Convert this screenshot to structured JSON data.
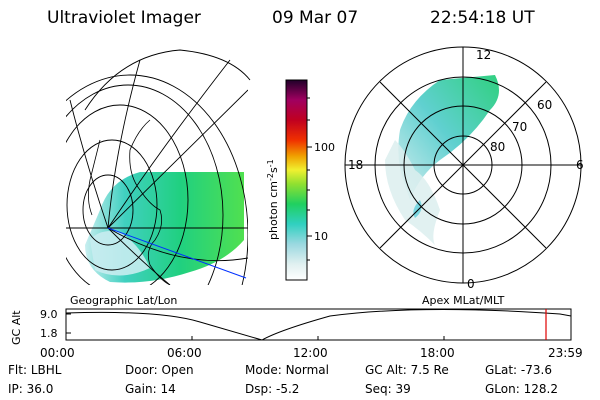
{
  "header": {
    "instrument": "Ultraviolet Imager",
    "date": "09 Mar 07",
    "time": "22:54:18 UT"
  },
  "left_panel": {
    "caption": "Geographic Lat/Lon"
  },
  "right_panel": {
    "caption": "Apex MLat/MLT",
    "mlt_labels": [
      "12",
      "18",
      "6",
      "0"
    ],
    "lat_labels": [
      "60",
      "70",
      "80"
    ]
  },
  "colorbar": {
    "unit_label": "photon cm",
    "unit_sup1": "-2",
    "unit_mid": "s",
    "unit_sup2": "-1",
    "tick_labels": [
      "100",
      "10"
    ],
    "scale": "log"
  },
  "timeline": {
    "ylabel": "GC Alt",
    "ytick_labels": [
      "9.0",
      "1.8"
    ],
    "xtick_labels": [
      "00:00",
      "06:00",
      "12:00",
      "18:00",
      "23:59"
    ],
    "current_time_marker": "22:54",
    "marker_color": "#e00000"
  },
  "footer": {
    "row1": [
      {
        "key": "Flt:",
        "val": "LBHL"
      },
      {
        "key": "Door:",
        "val": "Open"
      },
      {
        "key": "Mode:",
        "val": "Normal"
      },
      {
        "key": "GC Alt:",
        "val": "7.5 Re"
      },
      {
        "key": "GLat:",
        "val": "-73.6"
      }
    ],
    "row2": [
      {
        "key": "IP:",
        "val": "36.0"
      },
      {
        "key": "Gain:",
        "val": "14"
      },
      {
        "key": "Dsp:",
        "val": "-5.2"
      },
      {
        "key": "Seq:",
        "val": "39"
      },
      {
        "key": "GLon:",
        "val": "128.2"
      }
    ]
  }
}
